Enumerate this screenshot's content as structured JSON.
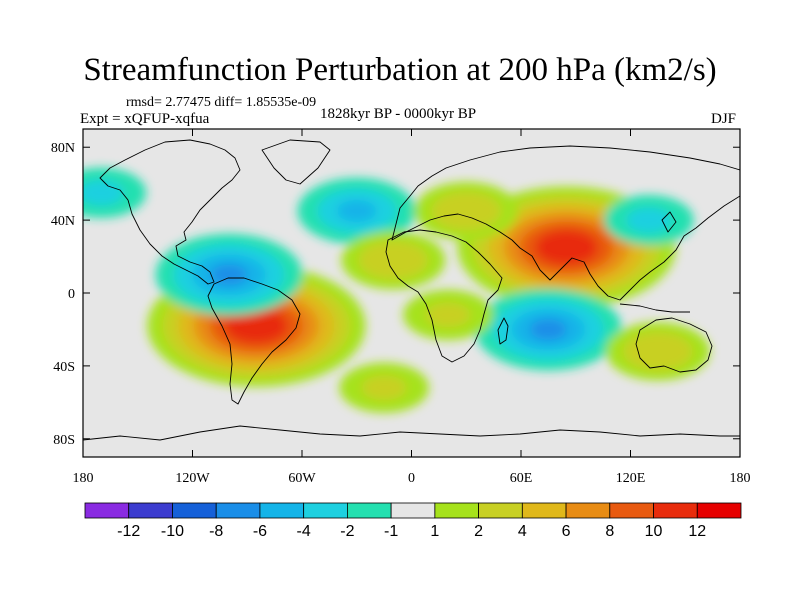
{
  "header": {
    "title": "Streamfunction Perturbation at 200 hPa (km2/s)",
    "stats": "rmsd= 2.77475 diff= 1.85535e-09",
    "experiment": "Expt = xQFUP-xqfua",
    "period": "1828kyr BP - 0000kyr BP",
    "season": "DJF"
  },
  "axes": {
    "lon_ticks": [
      {
        "value": -180,
        "label": "180"
      },
      {
        "value": -120,
        "label": "120W"
      },
      {
        "value": -60,
        "label": "60W"
      },
      {
        "value": 0,
        "label": "0"
      },
      {
        "value": 60,
        "label": "60E"
      },
      {
        "value": 120,
        "label": "120E"
      },
      {
        "value": 180,
        "label": "180"
      }
    ],
    "lat_ticks": [
      {
        "value": 80,
        "label": "80N"
      },
      {
        "value": 40,
        "label": "40N"
      },
      {
        "value": 0,
        "label": "0"
      },
      {
        "value": -40,
        "label": "40S"
      },
      {
        "value": -80,
        "label": "80S"
      }
    ],
    "lon_range": [
      -180,
      180
    ],
    "lat_range": [
      -90,
      90
    ]
  },
  "colorbar": {
    "levels": [
      "-12",
      "-10",
      "-8",
      "-6",
      "-4",
      "-2",
      "-1",
      "1",
      "2",
      "4",
      "6",
      "8",
      "10",
      "12"
    ],
    "colors": [
      "#8a2be2",
      "#3c3ccf",
      "#1560d8",
      "#1a8ee8",
      "#14b4e8",
      "#1ed0e0",
      "#24e0b0",
      "#e6e6e6",
      "#a6e21c",
      "#c8d024",
      "#e0b81a",
      "#e88c14",
      "#e85a10",
      "#e82c0c",
      "#e60000"
    ]
  },
  "chart_data": {
    "type": "contour-map",
    "title": "Streamfunction Perturbation at 200 hPa (km2/s)",
    "units": "km2/s",
    "level_hPa": 200,
    "season": "DJF",
    "anomalies": [
      {
        "region": "South America / subtropical South Pacific",
        "lon": -85,
        "lat": -18,
        "value": 11
      },
      {
        "region": "South Asia / Arabian Sea",
        "lon": 85,
        "lat": 25,
        "value": 11
      },
      {
        "region": "Eastern Pacific - Central America",
        "lon": -100,
        "lat": 10,
        "value": -6
      },
      {
        "region": "Southern Indian Ocean",
        "lon": 75,
        "lat": -20,
        "value": -6
      },
      {
        "region": "North Atlantic",
        "lon": -30,
        "lat": 45,
        "value": -4
      },
      {
        "region": "Mediterranean / Europe",
        "lon": 30,
        "lat": 45,
        "value": 3
      },
      {
        "region": "North Africa",
        "lon": -10,
        "lat": 18,
        "value": 3
      },
      {
        "region": "Western Australia",
        "lon": 135,
        "lat": -32,
        "value": 3
      },
      {
        "region": "South Atlantic",
        "lon": -15,
        "lat": -52,
        "value": 2
      },
      {
        "region": "North Pacific",
        "lon": 130,
        "lat": 40,
        "value": -2
      },
      {
        "region": "Western North Pacific",
        "lon": -170,
        "lat": 55,
        "value": -2
      },
      {
        "region": "Equatorial Africa",
        "lon": 20,
        "lat": -12,
        "value": 2
      }
    ],
    "value_range": [
      -12,
      12
    ]
  }
}
